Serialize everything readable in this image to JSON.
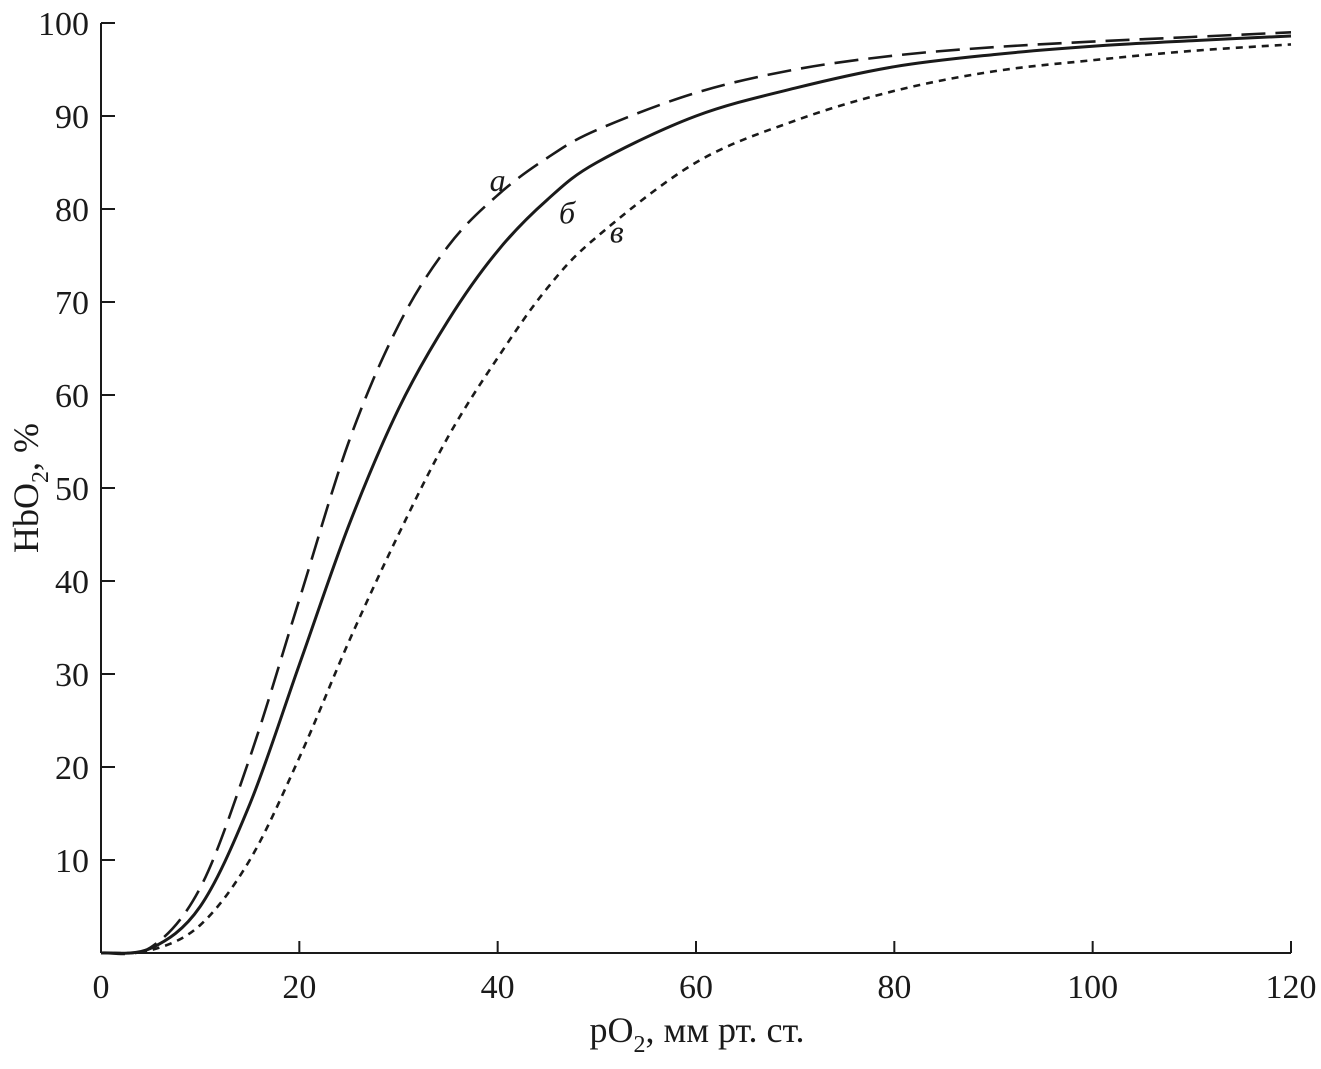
{
  "chart_data": {
    "type": "line",
    "xlabel": {
      "main": "pO",
      "sub": "2",
      "rest": ", мм рт. ст."
    },
    "ylabel": {
      "main": "HbO",
      "sub": "2",
      "rest": ", %"
    },
    "xlim": [
      0,
      120
    ],
    "ylim": [
      0,
      100
    ],
    "x_ticks": [
      0,
      20,
      40,
      60,
      80,
      100,
      120
    ],
    "y_ticks": [
      10,
      20,
      30,
      40,
      50,
      60,
      70,
      80,
      90,
      100
    ],
    "x_tick_labels": [
      "0",
      "20",
      "40",
      "60",
      "80",
      "100",
      "120"
    ],
    "y_tick_labels": [
      "10",
      "20",
      "30",
      "40",
      "50",
      "60",
      "70",
      "80",
      "90",
      "100"
    ],
    "grid": false,
    "colors": {
      "line": "#1a1a1a",
      "axis": "#1a1a1a"
    },
    "series": [
      {
        "label": "а",
        "style": "long-dash",
        "label_at": [
          40,
          83
        ],
        "x": [
          0,
          5,
          10,
          15,
          20,
          25,
          30,
          35,
          40,
          45,
          50,
          60,
          70,
          80,
          90,
          100,
          110,
          120
        ],
        "y": [
          0,
          0.6,
          7,
          21,
          38,
          55,
          67.5,
          76,
          81.5,
          85.5,
          88.5,
          92.5,
          95,
          96.5,
          97.4,
          98,
          98.5,
          99
        ]
      },
      {
        "label": "б",
        "style": "solid",
        "label_at": [
          47,
          79.5
        ],
        "x": [
          0,
          5,
          10,
          15,
          20,
          25,
          30,
          35,
          40,
          45,
          50,
          60,
          70,
          80,
          90,
          100,
          110,
          120
        ],
        "y": [
          0,
          0.5,
          5,
          16,
          31,
          46,
          58.5,
          68,
          75.5,
          81,
          85,
          90,
          93,
          95.3,
          96.6,
          97.5,
          98.1,
          98.6
        ]
      },
      {
        "label": "в",
        "style": "short-dash",
        "label_at": [
          52,
          77.5
        ],
        "x": [
          0,
          5,
          10,
          15,
          20,
          25,
          30,
          35,
          40,
          45,
          50,
          60,
          70,
          80,
          90,
          100,
          110,
          120
        ],
        "y": [
          0,
          0.3,
          3,
          10,
          21,
          33.5,
          45,
          55.5,
          64,
          71.5,
          77,
          85,
          89.5,
          92.7,
          94.8,
          96,
          97,
          97.7
        ]
      }
    ]
  }
}
